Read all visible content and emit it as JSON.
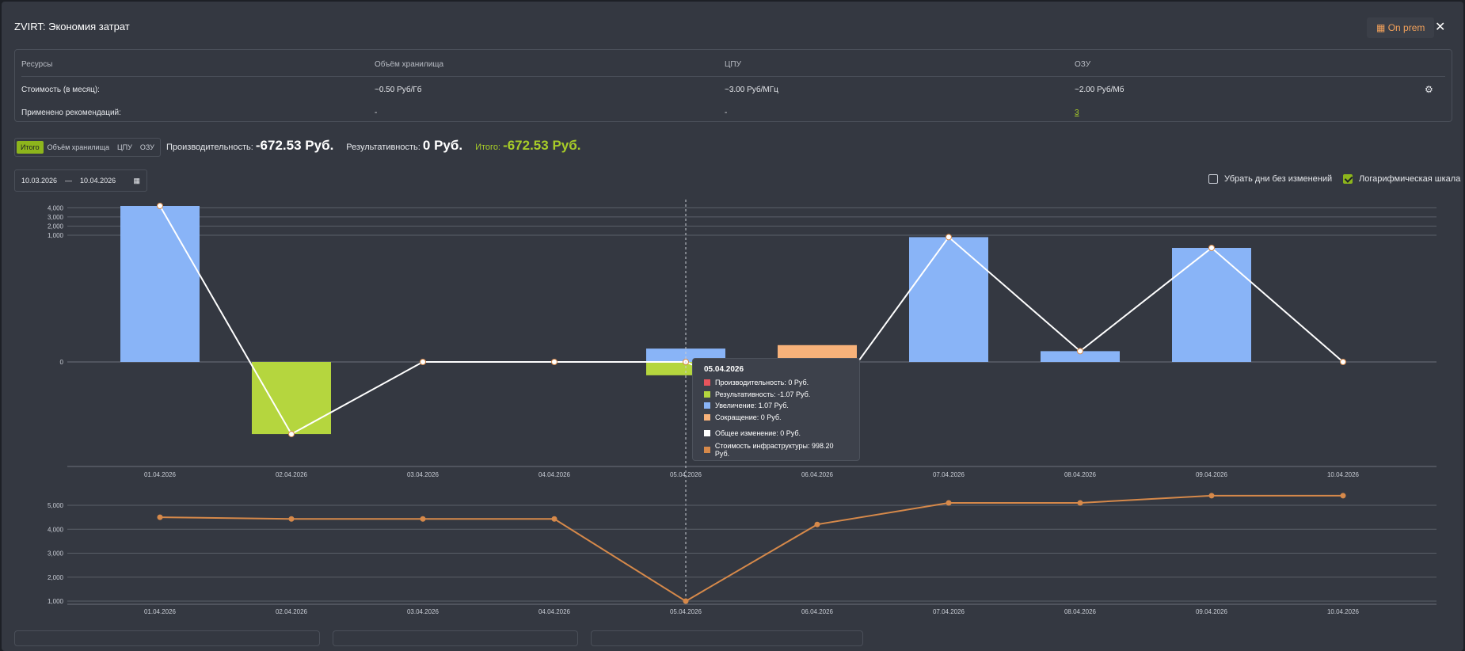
{
  "window": {
    "title": "ZVIRT: Экономия затрат",
    "badge": "On prem",
    "badge_icon": "server-icon"
  },
  "resources": {
    "headers": [
      "Ресурсы",
      "Объём хранилища",
      "ЦПУ",
      "ОЗУ"
    ],
    "rows": [
      {
        "label": "Стоимость (в месяц):",
        "storage": "~0.50 Руб/Гб",
        "cpu": "~3.00 Руб/МГц",
        "ram": "~2.00 Руб/Мб"
      },
      {
        "label": "Применено рекомендаций:",
        "storage": "-",
        "cpu": "-",
        "ram": "3"
      }
    ]
  },
  "tabs": [
    "Итого",
    "Объём хранилища",
    "ЦПУ",
    "ОЗУ"
  ],
  "active_tab": "Итого",
  "metrics": {
    "perf_label": "Производительность:",
    "perf_value": "-672.53 Руб.",
    "result_label": "Результативность:",
    "result_value": "0 Руб.",
    "total_label": "Итого:",
    "total_value": "-672.53 Руб."
  },
  "date_range": {
    "from": "10.03.2026",
    "sep": "—",
    "to": "10.04.2026"
  },
  "options": {
    "remove_days": "Убрать дни без изменений",
    "remove_days_checked": false,
    "log_scale": "Логарифмическая шкала",
    "log_scale_checked": true
  },
  "colors": {
    "accent": "#8db51c",
    "increase": "#89b4f7",
    "result": "#b5d63e",
    "decrease": "#f7b27a",
    "perf": "#e8545c",
    "infra": "#d6894a"
  },
  "tooltip": {
    "date": "05.04.2026",
    "items": [
      {
        "label": "Производительность: 0 Руб.",
        "color": "#e8545c"
      },
      {
        "label": "Результативность: -1.07 Руб.",
        "color": "#b5d63e"
      },
      {
        "label": "Увеличение: 1.07 Руб.",
        "color": "#89b4f7"
      },
      {
        "label": "Сокращение: 0 Руб.",
        "color": "#f7b27a"
      }
    ],
    "total": "Общее изменение: 0 Руб.",
    "infra": "Стоимость инфраструктуры: 998.20 Руб."
  },
  "chart_data": [
    {
      "type": "bar",
      "scale": "log",
      "categories": [
        "01.04.2026",
        "02.04.2026",
        "03.04.2026",
        "04.04.2026",
        "05.04.2026",
        "06.04.2026",
        "07.04.2026",
        "08.04.2026",
        "09.04.2026",
        "10.04.2026"
      ],
      "y_ticks": [
        "4,000",
        "3,000",
        "2,000",
        "1,000",
        "0"
      ],
      "series": [
        {
          "name": "Увеличение",
          "values": [
            4200,
            0,
            0,
            0,
            1.07,
            0,
            900,
            0.8,
            500,
            0
          ]
        },
        {
          "name": "Результативность",
          "values": [
            0,
            -50,
            0,
            0,
            -1.07,
            0,
            0,
            0,
            0,
            0
          ]
        },
        {
          "name": "Сокращение",
          "values": [
            0,
            0,
            0,
            0,
            0,
            1.5,
            0,
            0,
            0,
            0
          ]
        },
        {
          "name": "Общее изменение",
          "values": [
            4200,
            -50,
            0,
            0,
            0,
            -20,
            900,
            0.8,
            500,
            0
          ]
        }
      ]
    },
    {
      "type": "line",
      "categories": [
        "01.04.2026",
        "02.04.2026",
        "03.04.2026",
        "04.04.2026",
        "05.04.2026",
        "06.04.2026",
        "07.04.2026",
        "08.04.2026",
        "09.04.2026",
        "10.04.2026"
      ],
      "y_ticks": [
        "5,000",
        "4,000",
        "3,000",
        "2,000",
        "1,000"
      ],
      "ylim": [
        1000,
        5500
      ],
      "series": [
        {
          "name": "Стоимость инфраструктуры",
          "values": [
            4500,
            4430,
            4430,
            4430,
            998.2,
            4200,
            5100,
            5100,
            5400,
            5400
          ]
        }
      ]
    }
  ]
}
